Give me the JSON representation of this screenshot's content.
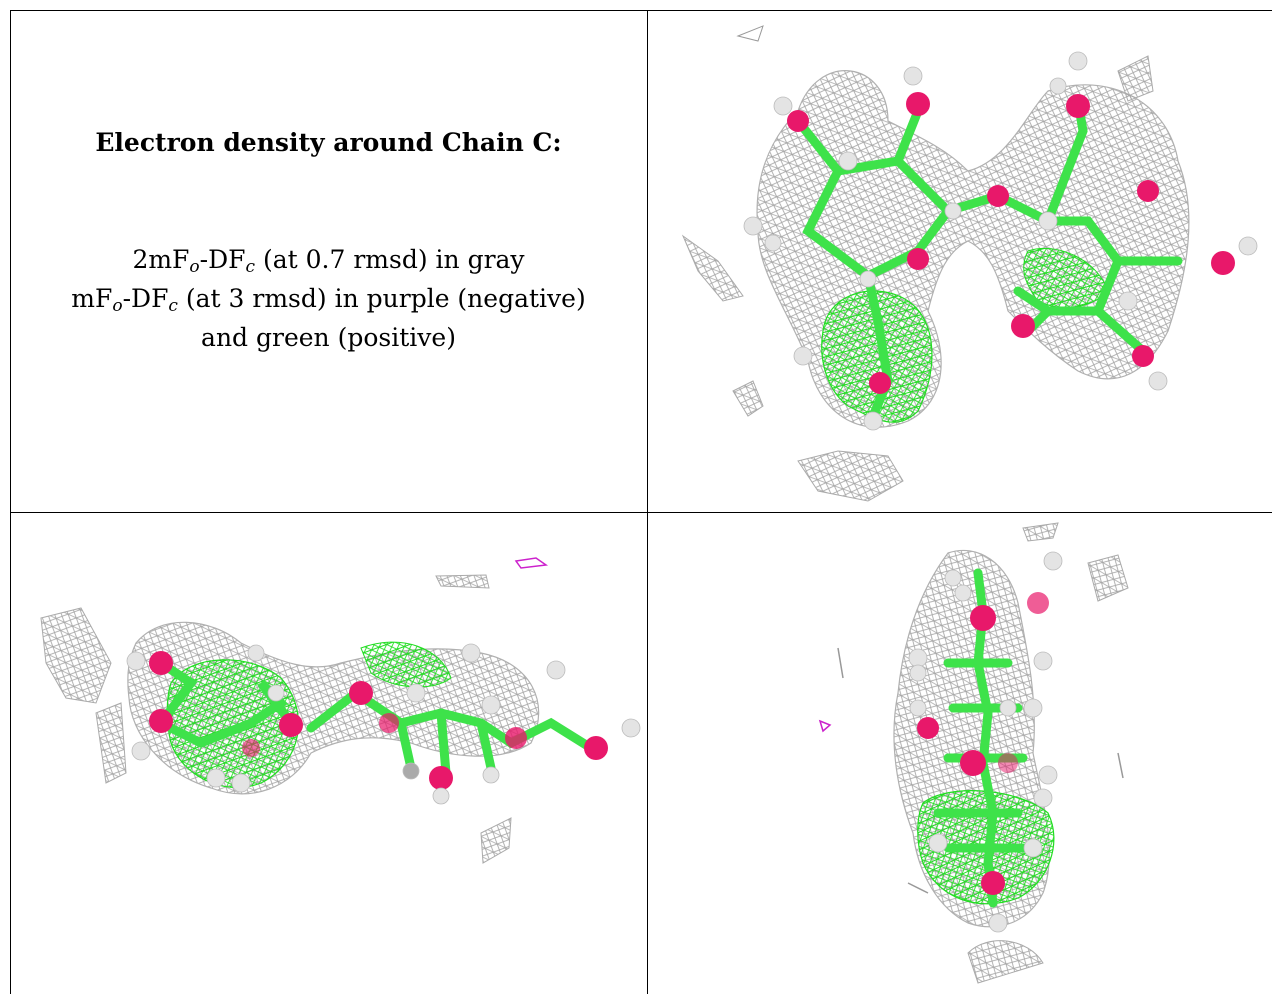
{
  "caption": {
    "title": "Electron density around Chain C:",
    "line1": {
      "pre": "2mF",
      "sub1": "o",
      "mid": "-DF",
      "sub2": "c",
      "post": " (at 0.7 rmsd) in gray"
    },
    "line2": {
      "pre": "mF",
      "sub1": "o",
      "mid": "-DF",
      "sub2": "c",
      "post": " (at 3 rmsd) in purple (negative)"
    },
    "line3": "and green (positive)"
  },
  "colors": {
    "carbon": "#3ee24a",
    "oxygen": "#e8186a",
    "hydrogen": "#e6e6e6",
    "mesh_gray": "#9a9a9a",
    "mesh_green": "#22dd22",
    "mesh_purple": "#cc22cc"
  }
}
